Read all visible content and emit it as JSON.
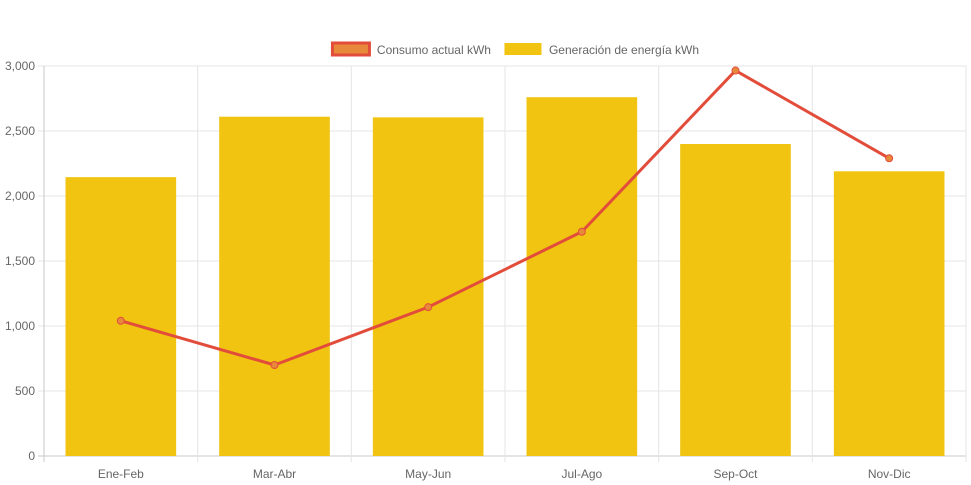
{
  "chart_data": {
    "type": "bar",
    "categories": [
      "Ene-Feb",
      "Mar-Abr",
      "May-Jun",
      "Jul-Ago",
      "Sep-Oct",
      "Nov-Dic"
    ],
    "series": [
      {
        "name": "Consumo actual kWh",
        "type": "line",
        "values": [
          1040,
          700,
          1145,
          1725,
          2965,
          2290
        ],
        "color": "#e24d3b",
        "point_color": "#e8883a"
      },
      {
        "name": "Generación de energía kWh",
        "type": "bar",
        "values": [
          2145,
          2610,
          2605,
          2760,
          2400,
          2190
        ],
        "color": "#f0c410"
      }
    ],
    "ylim": [
      0,
      3000
    ],
    "yticks": [
      0,
      500,
      1000,
      1500,
      2000,
      2500,
      3000
    ],
    "ytick_labels": [
      "0",
      "500",
      "1,000",
      "1,500",
      "2,000",
      "2,500",
      "3,000"
    ],
    "grid": true,
    "legend_position": "top-center",
    "title": "",
    "xlabel": "",
    "ylabel": ""
  }
}
